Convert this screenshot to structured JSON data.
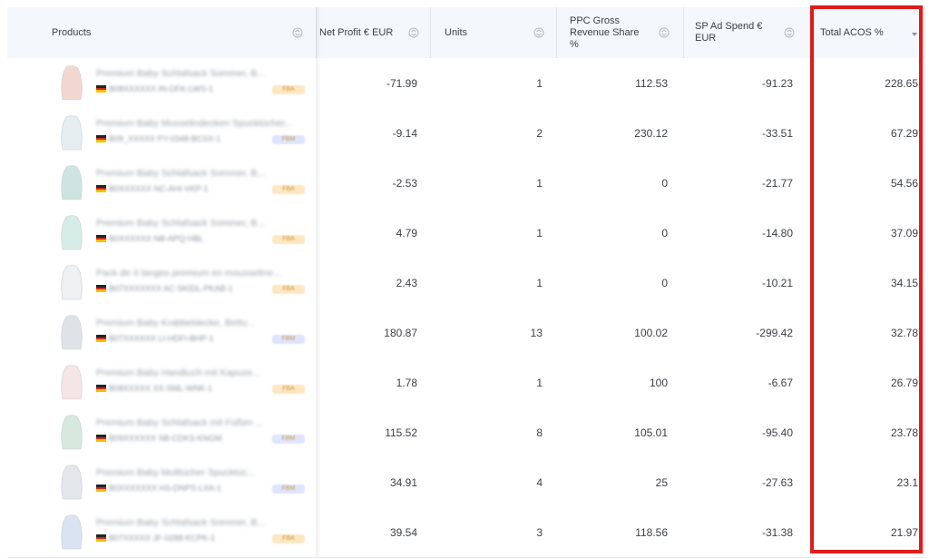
{
  "columns": {
    "products": "Products",
    "net_profit": "Net Profit € EUR",
    "units": "Units",
    "ppc_line1": "PPC Gross",
    "ppc_line2": "Revenue Share",
    "ppc_line3": "%",
    "sp_line1": "SP Ad Spend €",
    "sp_line2": "EUR",
    "acos": "Total ACOS %"
  },
  "rows": [
    {
      "name": "Premium Baby Schlafsack Sommer, B...",
      "sku": "B08XXXXXX  IN-OFK-LWS-1",
      "badge": "FBA",
      "net_profit": "-71.99",
      "units": "1",
      "ppc": "112.53",
      "sp": "-91.23",
      "acos": "228.65"
    },
    {
      "name": "Premium Baby Musselindecken Spucktücher...",
      "sku": "B09_XXXXX  PY-0348-BCSX-1",
      "badge": "FBM",
      "net_profit": "-9.14",
      "units": "2",
      "ppc": "230.12",
      "sp": "-33.51",
      "acos": "67.29"
    },
    {
      "name": "Premium Baby Schlafsack Sommer, B...",
      "sku": "B0XXXXXX  NC-AHI-VKP-1",
      "badge": "FBA",
      "net_profit": "-2.53",
      "units": "1",
      "ppc": "0",
      "sp": "-21.77",
      "acos": "54.56"
    },
    {
      "name": "Premium Baby Schlafsack Sommer, B...",
      "sku": "B0XXXXXX  NB-APQ-HBL",
      "badge": "FBA",
      "net_profit": "4.79",
      "units": "1",
      "ppc": "0",
      "sp": "-14.80",
      "acos": "37.09"
    },
    {
      "name": "Pack de 4 langes premium en mousseline...",
      "sku": "B07XXXXXXX  AC-SKIDL-PKAB-1",
      "badge": "FBA",
      "net_profit": "2.43",
      "units": "1",
      "ppc": "0",
      "sp": "-10.21",
      "acos": "34.15"
    },
    {
      "name": "Premium Baby Krabbeldecke, Bettu...",
      "sku": "B07XXXXXX  LI-HDFI-BHP-1",
      "badge": "FBM",
      "net_profit": "180.87",
      "units": "13",
      "ppc": "100.02",
      "sp": "-299.42",
      "acos": "32.78"
    },
    {
      "name": "Premium Baby Handtuch mit Kapuze...",
      "sku": "B08XXXXX  XX-SML-WNK-1",
      "badge": "FBA",
      "net_profit": "1.78",
      "units": "1",
      "ppc": "100",
      "sp": "-6.67",
      "acos": "26.79"
    },
    {
      "name": "Premium Baby Schlafsack mit Füßen ...",
      "sku": "B09XXXXXX  SB-CDKS-KNGM",
      "badge": "FBM",
      "net_profit": "115.52",
      "units": "8",
      "ppc": "105.01",
      "sp": "-95.40",
      "acos": "23.78"
    },
    {
      "name": "Premium Baby Mulltücher Spucktüc...",
      "sku": "B0XXXXXXX  HS-DNPS-LXA-1",
      "badge": "FBM",
      "net_profit": "34.91",
      "units": "4",
      "ppc": "25",
      "sp": "-27.63",
      "acos": "23.1"
    },
    {
      "name": "Premium Baby Schlafsack Sommer, B...",
      "sku": "B07XXXXX  JF-0288-KCPK-1",
      "badge": "FBA",
      "net_profit": "39.54",
      "units": "3",
      "ppc": "118.56",
      "sp": "-31.38",
      "acos": "21.97"
    }
  ],
  "colors": {
    "header_bg": "#f4f7fb",
    "highlight": "#e01b1b",
    "badge_fba": "#fde7c2",
    "badge_fbm": "#dfe4ff"
  },
  "icons": {
    "sort": "sort-updown-icon",
    "sort_active": "sort-desc-icon"
  }
}
